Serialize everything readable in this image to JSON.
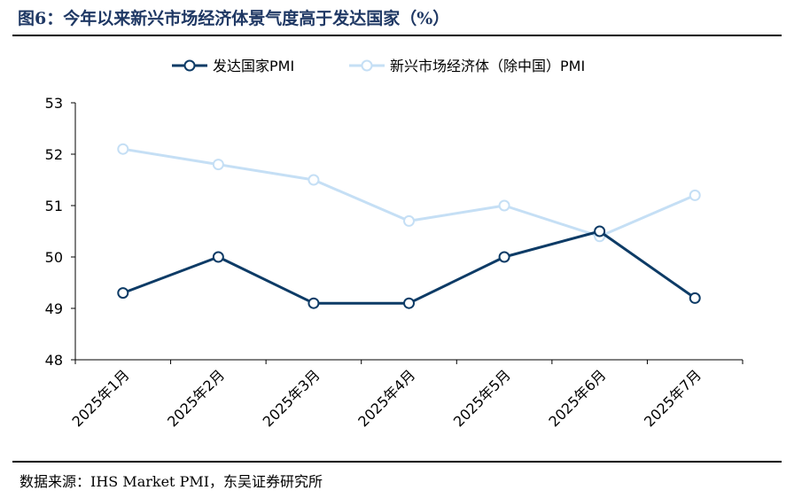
{
  "figure": {
    "title": "图6：今年以来新兴市场经济体景气度高于发达国家（%）",
    "source": "数据来源：IHS Market PMI，东吴证券研究所"
  },
  "chart_data": {
    "type": "line",
    "categories": [
      "2025年1月",
      "2025年2月",
      "2025年3月",
      "2025年4月",
      "2025年5月",
      "2025年6月",
      "2025年7月"
    ],
    "series": [
      {
        "name": "发达国家PMI",
        "values": [
          49.3,
          50.0,
          49.1,
          49.1,
          50.0,
          50.5,
          49.2
        ],
        "color": "#0d3b66"
      },
      {
        "name": "新兴市场经济体（除中国）PMI",
        "values": [
          52.1,
          51.8,
          51.5,
          50.7,
          51.0,
          50.4,
          51.2
        ],
        "color": "#c5dff5"
      }
    ],
    "ylim": [
      48,
      53
    ],
    "yticks": [
      48,
      49,
      50,
      51,
      52,
      53
    ],
    "grid": false,
    "legend": "top-center",
    "markers": "hollow-circle"
  }
}
